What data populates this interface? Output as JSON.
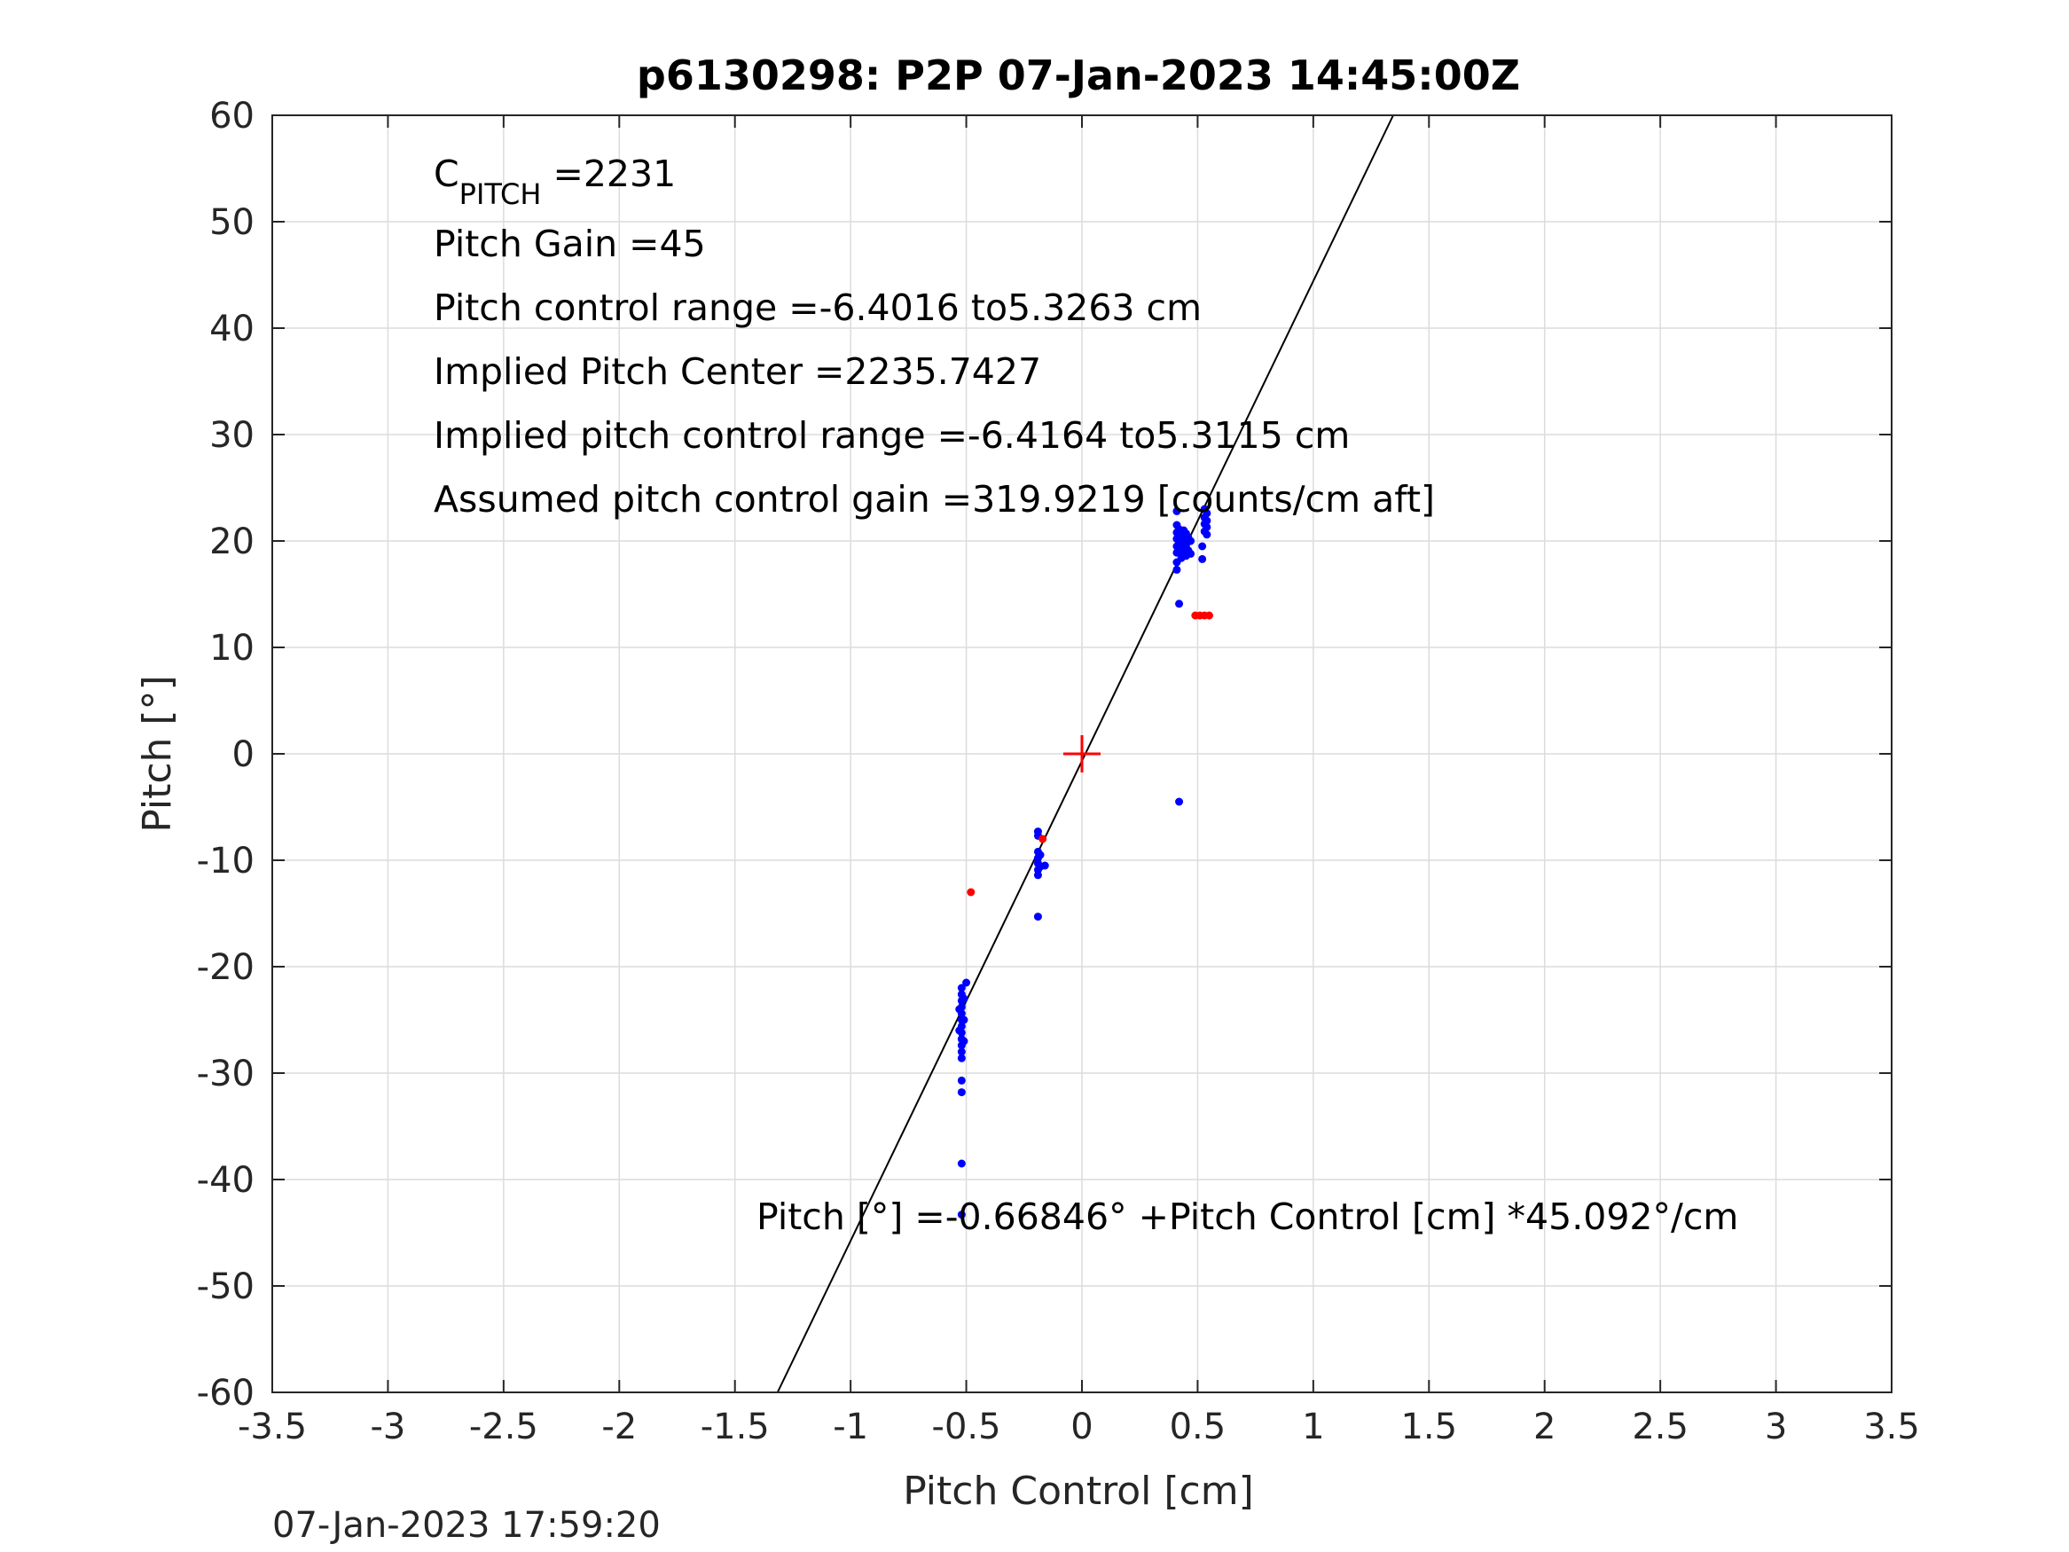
{
  "chart_data": {
    "type": "scatter",
    "title": "p6130298: P2P 07-Jan-2023 14:45:00Z",
    "xlabel": "Pitch Control [cm]",
    "ylabel": "Pitch [°]",
    "xlim": [
      -3.5,
      3.5
    ],
    "ylim": [
      -60,
      60
    ],
    "xticks": [
      -3.5,
      -3,
      -2.5,
      -2,
      -1.5,
      -1,
      -0.5,
      0,
      0.5,
      1,
      1.5,
      2,
      2.5,
      3,
      3.5
    ],
    "xtick_labels": [
      "-3.5",
      "-3",
      "-2.5",
      "-2",
      "-1.5",
      "-1",
      "-0.5",
      "0",
      "0.5",
      "1",
      "1.5",
      "2",
      "2.5",
      "3",
      "3.5"
    ],
    "yticks": [
      -60,
      -50,
      -40,
      -30,
      -20,
      -10,
      0,
      10,
      20,
      30,
      40,
      50,
      60
    ],
    "ytick_labels": [
      "-60",
      "-50",
      "-40",
      "-30",
      "-20",
      "-10",
      "0",
      "10",
      "20",
      "30",
      "40",
      "50",
      "60"
    ],
    "grid": true,
    "colors": {
      "blue_series": "#0000ff",
      "red_series": "#ff0000",
      "fit_line": "#000000",
      "center_marker": "#ff0000",
      "grid": "#dcdcdc",
      "axes": "#262626"
    },
    "fit_line": {
      "intercept": -0.66846,
      "slope": 45.092
    },
    "center_marker": {
      "x": 0,
      "y": 0
    },
    "series": [
      {
        "color": "#0000ff",
        "points": [
          [
            0.41,
            22.8
          ],
          [
            0.41,
            21.5
          ],
          [
            0.41,
            20.8
          ],
          [
            0.41,
            20.2
          ],
          [
            0.41,
            19.5
          ],
          [
            0.41,
            18.9
          ],
          [
            0.41,
            18.0
          ],
          [
            0.41,
            17.3
          ],
          [
            0.42,
            21.1
          ],
          [
            0.42,
            19.8
          ],
          [
            0.43,
            20.5
          ],
          [
            0.43,
            19.0
          ],
          [
            0.43,
            18.4
          ],
          [
            0.44,
            21.0
          ],
          [
            0.44,
            20.1
          ],
          [
            0.44,
            19.3
          ],
          [
            0.45,
            20.7
          ],
          [
            0.45,
            19.6
          ],
          [
            0.45,
            18.6
          ],
          [
            0.46,
            20.3
          ],
          [
            0.46,
            19.1
          ],
          [
            0.47,
            20.0
          ],
          [
            0.47,
            18.8
          ],
          [
            0.53,
            23.0
          ],
          [
            0.53,
            22.2
          ],
          [
            0.53,
            21.6
          ],
          [
            0.53,
            20.9
          ],
          [
            0.54,
            22.6
          ],
          [
            0.54,
            21.9
          ],
          [
            0.54,
            21.3
          ],
          [
            0.54,
            20.6
          ],
          [
            0.52,
            19.5
          ],
          [
            0.52,
            18.3
          ],
          [
            0.42,
            14.1
          ],
          [
            0.42,
            -4.5
          ],
          [
            -0.19,
            -7.3
          ],
          [
            -0.19,
            -7.7
          ],
          [
            -0.19,
            -9.2
          ],
          [
            -0.19,
            -9.8
          ],
          [
            -0.19,
            -10.3
          ],
          [
            -0.19,
            -10.9
          ],
          [
            -0.19,
            -11.4
          ],
          [
            -0.18,
            -9.5
          ],
          [
            -0.18,
            -10.6
          ],
          [
            -0.16,
            -10.5
          ],
          [
            -0.19,
            -15.3
          ],
          [
            -0.52,
            -22.0
          ],
          [
            -0.52,
            -22.6
          ],
          [
            -0.52,
            -23.2
          ],
          [
            -0.52,
            -23.8
          ],
          [
            -0.52,
            -24.4
          ],
          [
            -0.52,
            -25.0
          ],
          [
            -0.52,
            -25.6
          ],
          [
            -0.52,
            -26.2
          ],
          [
            -0.52,
            -26.8
          ],
          [
            -0.52,
            -27.4
          ],
          [
            -0.52,
            -28.0
          ],
          [
            -0.52,
            -28.6
          ],
          [
            -0.53,
            -24.0
          ],
          [
            -0.53,
            -26.0
          ],
          [
            -0.51,
            -23.0
          ],
          [
            -0.51,
            -25.0
          ],
          [
            -0.51,
            -27.0
          ],
          [
            -0.5,
            -21.5
          ],
          [
            -0.52,
            -30.7
          ],
          [
            -0.52,
            -31.8
          ],
          [
            -0.52,
            -38.5
          ],
          [
            -0.52,
            -43.3
          ]
        ]
      },
      {
        "color": "#ff0000",
        "points": [
          [
            0.49,
            13.0
          ],
          [
            0.51,
            13.0
          ],
          [
            0.53,
            13.0
          ],
          [
            0.55,
            13.0
          ],
          [
            -0.48,
            -13.0
          ],
          [
            -0.17,
            -8.0
          ]
        ]
      }
    ],
    "annotations": {
      "c_pitch_main": "C",
      "c_pitch_sub": "PITCH",
      "c_pitch_value": " =2231",
      "pitch_gain": "Pitch Gain =45",
      "control_range": "Pitch control range =-6.4016 to5.3263 cm",
      "pitch_center": "Implied Pitch Center =2235.7427",
      "implied_range": "Implied pitch control range =-6.4164 to5.3115 cm",
      "control_gain": "Assumed pitch control gain =319.9219 [counts/cm aft]",
      "fit_equation": "Pitch [°] =-0.66846° +Pitch Control [cm] *45.092°/cm"
    },
    "footer_timestamp": "07-Jan-2023 17:59:20"
  }
}
